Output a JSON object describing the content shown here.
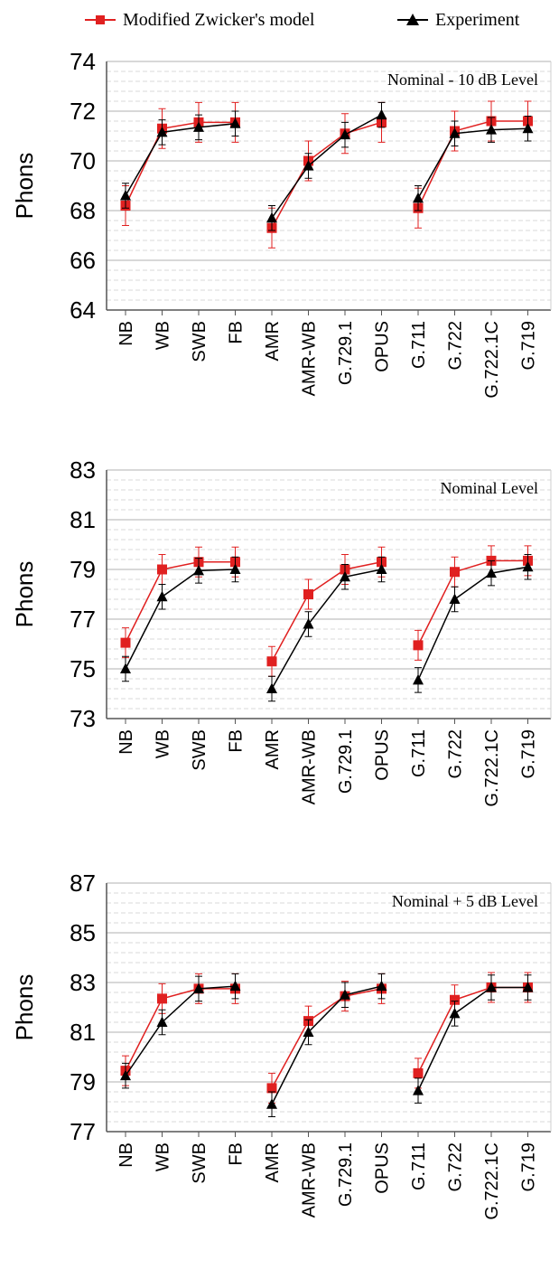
{
  "legend": {
    "model_label": "Modified Zwicker's model",
    "experiment_label": "Experiment",
    "model_color": "#e02020",
    "experiment_color": "#000000"
  },
  "chart_data": [
    {
      "type": "line",
      "annotation": "Nominal - 10 dB Level",
      "ylabel": "Phons",
      "ylim": [
        64,
        74
      ],
      "yticks": [
        64,
        66,
        68,
        70,
        72,
        74
      ],
      "categories": [
        "NB",
        "WB",
        "SWB",
        "FB",
        "AMR",
        "AMR-WB",
        "G.729.1",
        "OPUS",
        "G.711",
        "G.722",
        "G.722.1C",
        "G.719"
      ],
      "groups": [
        [
          0,
          1,
          2,
          3
        ],
        [
          4,
          5,
          6,
          7
        ],
        [
          8,
          9,
          10,
          11
        ]
      ],
      "series": [
        {
          "name": "Modified Zwicker's model",
          "values": [
            68.2,
            71.3,
            71.55,
            71.55,
            67.3,
            70.0,
            71.1,
            71.55,
            68.1,
            71.2,
            71.6,
            71.6
          ],
          "err": [
            0.8,
            0.8,
            0.8,
            0.8,
            0.8,
            0.8,
            0.8,
            0.8,
            0.8,
            0.8,
            0.8,
            0.8
          ]
        },
        {
          "name": "Experiment",
          "values": [
            68.6,
            71.15,
            71.35,
            71.5,
            67.7,
            69.8,
            71.05,
            71.85,
            68.5,
            71.1,
            71.25,
            71.3
          ],
          "err": [
            0.5,
            0.5,
            0.5,
            0.5,
            0.5,
            0.5,
            0.5,
            0.5,
            0.5,
            0.5,
            0.5,
            0.5
          ]
        }
      ]
    },
    {
      "type": "line",
      "annotation": "Nominal Level",
      "ylabel": "Phons",
      "ylim": [
        73,
        83
      ],
      "yticks": [
        73,
        75,
        77,
        79,
        81,
        83
      ],
      "categories": [
        "NB",
        "WB",
        "SWB",
        "FB",
        "AMR",
        "AMR-WB",
        "G.729.1",
        "OPUS",
        "G.711",
        "G.722",
        "G.722.1C",
        "G.719"
      ],
      "groups": [
        [
          0,
          1,
          2,
          3
        ],
        [
          4,
          5,
          6,
          7
        ],
        [
          8,
          9,
          10,
          11
        ]
      ],
      "series": [
        {
          "name": "Modified Zwicker's model",
          "values": [
            76.05,
            79.0,
            79.3,
            79.3,
            75.3,
            78.0,
            79.0,
            79.3,
            75.95,
            78.9,
            79.35,
            79.35
          ],
          "err": [
            0.6,
            0.6,
            0.6,
            0.6,
            0.6,
            0.6,
            0.6,
            0.6,
            0.6,
            0.6,
            0.6,
            0.6
          ]
        },
        {
          "name": "Experiment",
          "values": [
            75.0,
            77.9,
            78.95,
            79.0,
            74.2,
            76.8,
            78.7,
            79.0,
            74.55,
            77.8,
            78.85,
            79.1
          ],
          "err": [
            0.5,
            0.5,
            0.5,
            0.5,
            0.5,
            0.5,
            0.5,
            0.5,
            0.5,
            0.5,
            0.5,
            0.5
          ]
        }
      ]
    },
    {
      "type": "line",
      "annotation": "Nominal + 5 dB Level",
      "ylabel": "Phons",
      "ylim": [
        77,
        87
      ],
      "yticks": [
        77,
        79,
        81,
        83,
        85,
        87
      ],
      "categories": [
        "NB",
        "WB",
        "SWB",
        "FB",
        "AMR",
        "AMR-WB",
        "G.729.1",
        "OPUS",
        "G.711",
        "G.722",
        "G.722.1C",
        "G.719"
      ],
      "groups": [
        [
          0,
          1,
          2,
          3
        ],
        [
          4,
          5,
          6,
          7
        ],
        [
          8,
          9,
          10,
          11
        ]
      ],
      "series": [
        {
          "name": "Modified Zwicker's model",
          "values": [
            79.45,
            82.35,
            82.75,
            82.75,
            78.75,
            81.45,
            82.45,
            82.75,
            79.35,
            82.3,
            82.8,
            82.8
          ],
          "err": [
            0.6,
            0.6,
            0.6,
            0.6,
            0.6,
            0.6,
            0.6,
            0.6,
            0.6,
            0.6,
            0.6,
            0.6
          ]
        },
        {
          "name": "Experiment",
          "values": [
            79.25,
            81.4,
            82.75,
            82.85,
            78.1,
            81.0,
            82.5,
            82.85,
            78.65,
            81.75,
            82.8,
            82.8
          ],
          "err": [
            0.5,
            0.5,
            0.5,
            0.5,
            0.5,
            0.5,
            0.5,
            0.5,
            0.5,
            0.5,
            0.5,
            0.5
          ]
        }
      ]
    }
  ]
}
